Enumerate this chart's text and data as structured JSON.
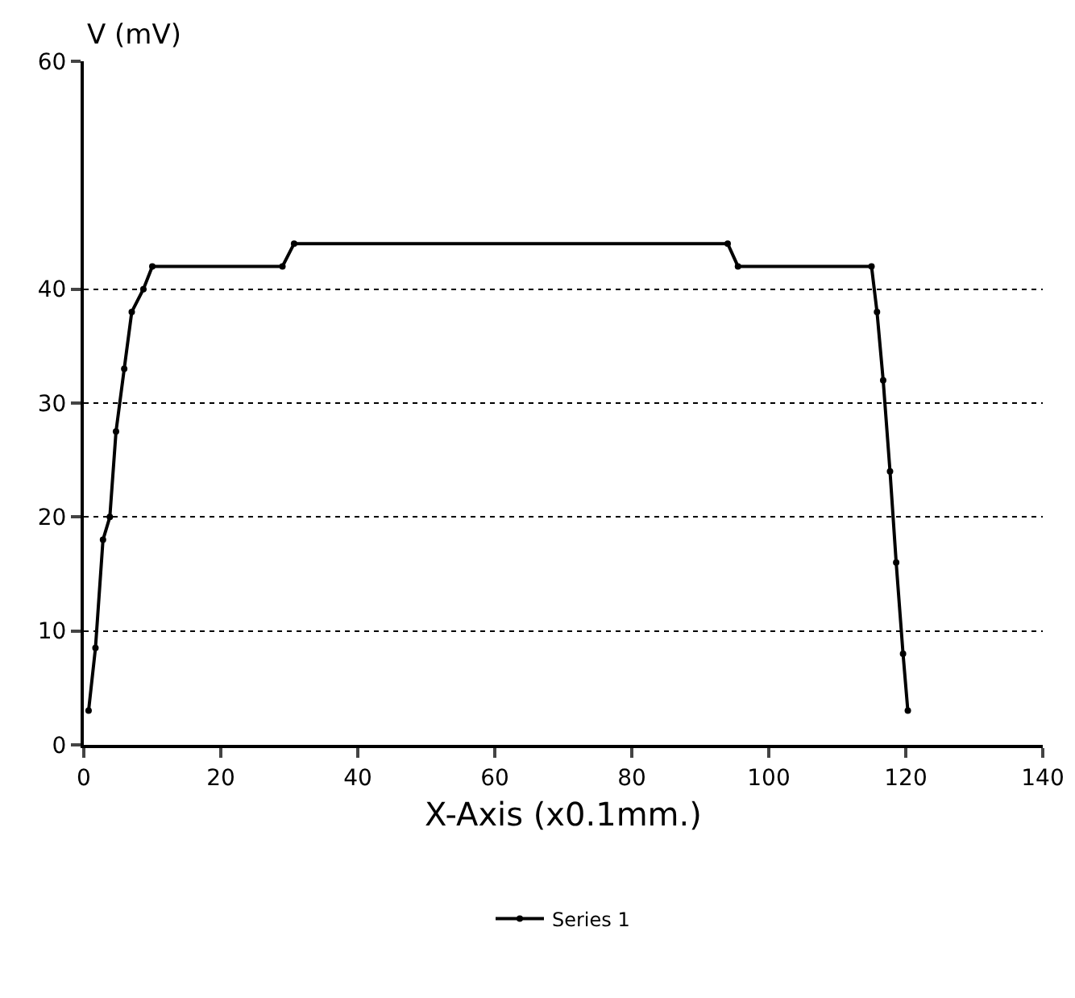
{
  "chart_data": {
    "type": "line",
    "xlabel": "X-Axis (x0.1mm.)",
    "ylabel": "V (mV)",
    "x": [
      0.7,
      1.7,
      2.8,
      3.8,
      4.7,
      5.9,
      7,
      8.7,
      10,
      29,
      30.7,
      94,
      95.5,
      115,
      115.8,
      116.7,
      117.7,
      118.6,
      119.6,
      120.3
    ],
    "series": [
      {
        "name": "Series 1",
        "color": "#000000",
        "values": [
          3,
          8.5,
          18,
          20,
          27.5,
          33,
          38,
          40,
          42,
          42,
          44,
          44,
          42,
          42,
          38,
          32,
          24,
          16,
          8,
          3
        ]
      }
    ],
    "xlim": [
      0,
      140
    ],
    "xticks": [
      0,
      20,
      40,
      60,
      80,
      100,
      120,
      140
    ],
    "ylim": [
      0,
      60
    ],
    "yticks": [
      0,
      10,
      20,
      30,
      40,
      60
    ],
    "grid": "y",
    "legend": "bottom",
    "marker": "circle",
    "line_style": "solid"
  }
}
